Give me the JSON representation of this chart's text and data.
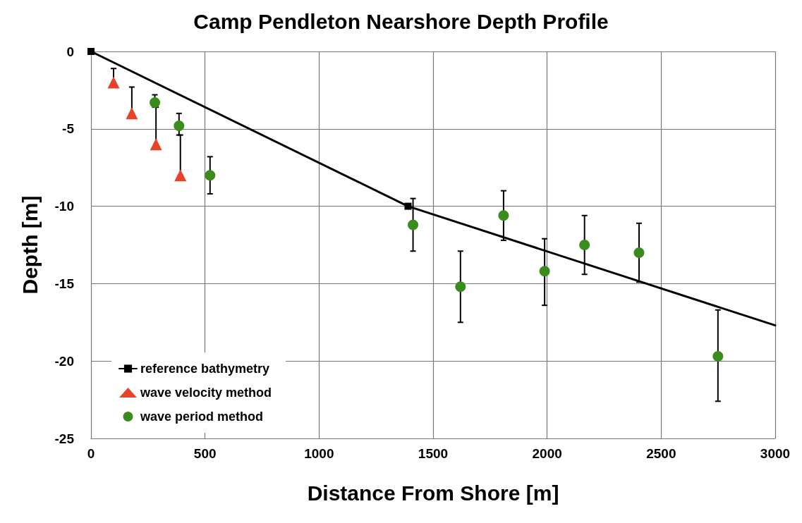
{
  "chart_data": {
    "type": "scatter",
    "title": "Camp Pendleton Nearshore Depth Profile",
    "xlabel": "Distance From Shore [m]",
    "ylabel": "Depth [m]",
    "xlim": [
      0,
      3000
    ],
    "xticks": [
      0,
      500,
      1000,
      1500,
      2000,
      2500,
      3000
    ],
    "ylim": [
      -25,
      0
    ],
    "yticks": [
      -25,
      -20,
      -15,
      -10,
      -5,
      0
    ],
    "grid": true,
    "legend": "bottom left",
    "series": [
      {
        "name": "reference bathymetry",
        "type": "line",
        "color": "#000000",
        "marker": "square",
        "x": [
          0,
          1390
        ],
        "values": [
          0,
          -10
        ]
      },
      {
        "type": "line",
        "color": "#000000",
        "marker": "none",
        "x": [
          1390,
          3000
        ],
        "values": [
          -10,
          -17.7
        ]
      },
      {
        "name": "wave velocity method",
        "color": "#e8432a",
        "marker": "triangle",
        "x": [
          99,
          179,
          285,
          392
        ],
        "values": [
          -2,
          -4,
          -6,
          -8
        ],
        "errors": [
          [
            -2,
            -1.1
          ],
          [
            -4,
            -2.3
          ],
          [
            -6,
            -3.6
          ],
          [
            -8,
            -5.4
          ]
        ]
      },
      {
        "name": "wave period method",
        "color": "#3a8c1c",
        "marker": "circle",
        "x": [
          280,
          386,
          522,
          1412,
          1620,
          1809,
          1989,
          2164,
          2403,
          2749
        ],
        "values": [
          -3.3,
          -4.8,
          -8,
          -11.2,
          -15.2,
          -10.6,
          -14.2,
          -12.5,
          -13,
          -19.7
        ],
        "errors": [
          [
            -3.6,
            -2.8
          ],
          [
            -5.4,
            -4
          ],
          [
            -9.2,
            -6.8
          ],
          [
            -12.9,
            -9.5
          ],
          [
            -17.5,
            -12.9
          ],
          [
            -12.2,
            -9
          ],
          [
            -16.4,
            -12.1
          ],
          [
            -14.4,
            -10.6
          ],
          [
            -14.9,
            -11.1
          ],
          [
            -22.6,
            -16.7
          ]
        ]
      }
    ]
  }
}
